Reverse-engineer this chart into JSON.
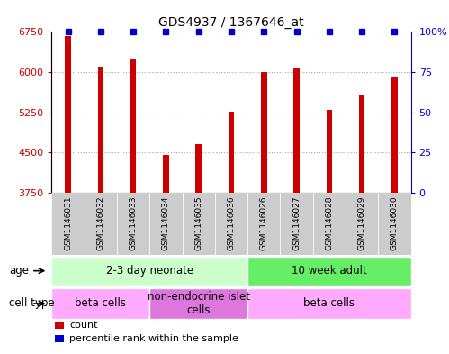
{
  "title": "GDS4937 / 1367646_at",
  "samples": [
    "GSM1146031",
    "GSM1146032",
    "GSM1146033",
    "GSM1146034",
    "GSM1146035",
    "GSM1146036",
    "GSM1146026",
    "GSM1146027",
    "GSM1146028",
    "GSM1146029",
    "GSM1146030"
  ],
  "counts": [
    6680,
    6110,
    6240,
    4460,
    4660,
    5270,
    6005,
    6060,
    5290,
    5580,
    5920
  ],
  "percentiles": [
    100,
    100,
    100,
    100,
    100,
    100,
    100,
    100,
    100,
    100,
    100
  ],
  "bar_color": "#cc0000",
  "dot_color": "#0000cc",
  "ylim_left": [
    3750,
    6750
  ],
  "ylim_right": [
    0,
    100
  ],
  "yticks_left": [
    3750,
    4500,
    5250,
    6000,
    6750
  ],
  "yticks_right": [
    0,
    25,
    50,
    75,
    100
  ],
  "ytick_labels_right": [
    "0",
    "25",
    "50",
    "75",
    "100%"
  ],
  "age_groups": [
    {
      "label": "2-3 day neonate",
      "start": 0,
      "end": 6,
      "color": "#ccffcc"
    },
    {
      "label": "10 week adult",
      "start": 6,
      "end": 11,
      "color": "#66ee66"
    }
  ],
  "cell_type_groups": [
    {
      "label": "beta cells",
      "start": 0,
      "end": 3,
      "color": "#ffaaff"
    },
    {
      "label": "non-endocrine islet\ncells",
      "start": 3,
      "end": 6,
      "color": "#dd77dd"
    },
    {
      "label": "beta cells",
      "start": 6,
      "end": 11,
      "color": "#ffaaff"
    }
  ],
  "legend_items": [
    {
      "color": "#cc0000",
      "label": "count"
    },
    {
      "color": "#0000cc",
      "label": "percentile rank within the sample"
    }
  ],
  "background_color": "#ffffff",
  "grid_color": "#aaaaaa",
  "tick_label_bg": "#cccccc",
  "bar_width": 0.18
}
